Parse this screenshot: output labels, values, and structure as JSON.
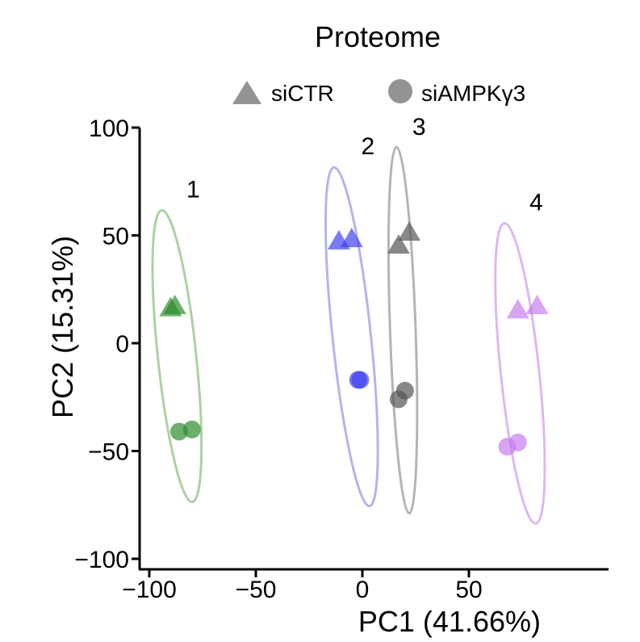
{
  "chart_data": {
    "type": "scatter",
    "title": "Proteome",
    "xlabel": "PC1 (41.66%)",
    "ylabel": "PC2 (15.31%)",
    "xlim": [
      -100,
      85
    ],
    "ylim": [
      -100,
      100
    ],
    "x_ticks": [
      -100,
      -50,
      0,
      50
    ],
    "y_ticks": [
      -100,
      -50,
      0,
      50,
      100
    ],
    "x_tick_labels": [
      "−100",
      "−50",
      "0",
      "50"
    ],
    "y_tick_labels": [
      "−100",
      "−50",
      "0",
      "50",
      "100"
    ],
    "grid": false,
    "legend": {
      "position": "top",
      "entries": [
        {
          "label": "siCTR",
          "shape": "triangle"
        },
        {
          "label": "siAMPKγ3",
          "shape": "circle"
        }
      ]
    },
    "groups": [
      {
        "label": "1",
        "color": "#2e8b2e",
        "ellipse_color": "#a9d3a0",
        "points": [
          {
            "x": -90,
            "y": 17,
            "shape": "triangle"
          },
          {
            "x": -88,
            "y": 18,
            "shape": "triangle"
          },
          {
            "x": -86,
            "y": -41,
            "shape": "circle"
          },
          {
            "x": -80,
            "y": -40,
            "shape": "circle"
          }
        ],
        "ellipse": {
          "cx": -87,
          "cy": -6,
          "rx": 9,
          "ry": 68,
          "angle": -6
        }
      },
      {
        "label": "2",
        "color": "#4141f0",
        "ellipse_color": "#b4b4ec",
        "points": [
          {
            "x": -11,
            "y": 48,
            "shape": "triangle"
          },
          {
            "x": -5,
            "y": 49,
            "shape": "triangle"
          },
          {
            "x": -2,
            "y": -17,
            "shape": "circle"
          },
          {
            "x": -1,
            "y": -17,
            "shape": "circle"
          }
        ],
        "ellipse": {
          "cx": -5,
          "cy": 3,
          "rx": 9,
          "ry": 79,
          "angle": -6
        }
      },
      {
        "label": "3",
        "color": "#555555",
        "ellipse_color": "#b4b4b4",
        "points": [
          {
            "x": 17,
            "y": 46,
            "shape": "triangle"
          },
          {
            "x": 22,
            "y": 52,
            "shape": "triangle"
          },
          {
            "x": 17,
            "y": -26,
            "shape": "circle"
          },
          {
            "x": 20,
            "y": -22,
            "shape": "circle"
          }
        ],
        "ellipse": {
          "cx": 19,
          "cy": 6,
          "rx": 6,
          "ry": 85,
          "angle": -2
        }
      },
      {
        "label": "4",
        "color": "#c87ef0",
        "ellipse_color": "#dcb8f0",
        "points": [
          {
            "x": 73,
            "y": 16,
            "shape": "triangle"
          },
          {
            "x": 82,
            "y": 18,
            "shape": "triangle"
          },
          {
            "x": 68,
            "y": -48,
            "shape": "circle"
          },
          {
            "x": 73,
            "y": -46,
            "shape": "circle"
          }
        ],
        "ellipse": {
          "cx": 74,
          "cy": -14,
          "rx": 9,
          "ry": 70,
          "angle": -6
        }
      }
    ]
  }
}
